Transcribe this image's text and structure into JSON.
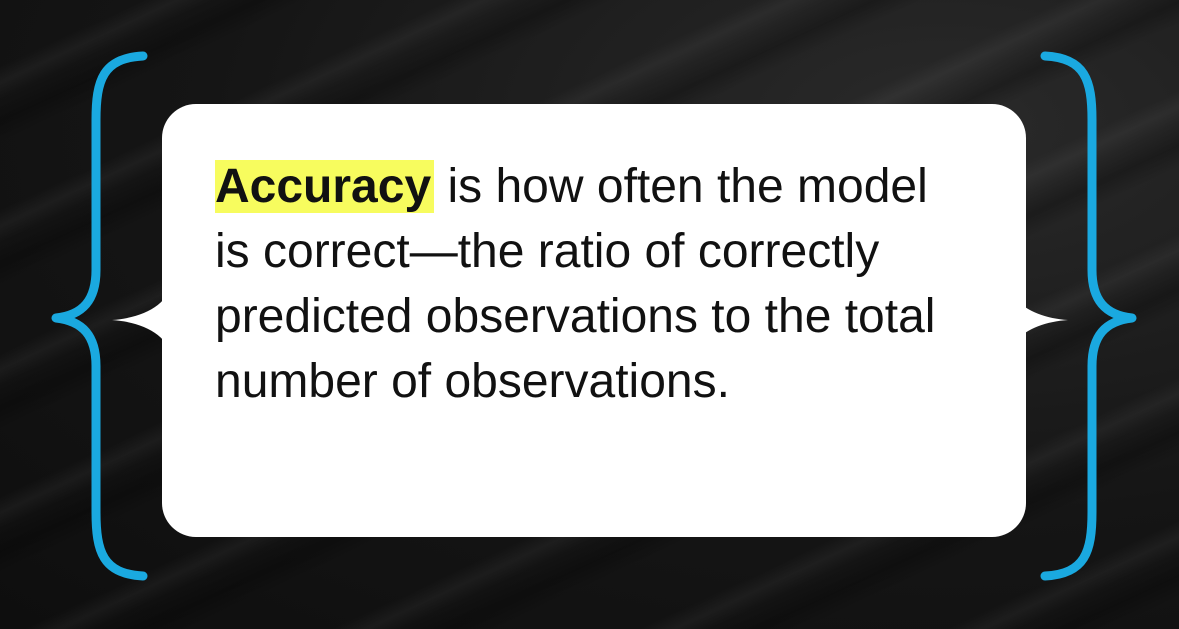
{
  "slide": {
    "highlight_term": "Accuracy",
    "definition": " is how often the model is correct—the ratio of correctly predicted observations to the total number of observations."
  },
  "colors": {
    "brace": "#1aa9e0",
    "highlight": "#f7fc5e",
    "card": "#ffffff",
    "background": "#141414"
  }
}
